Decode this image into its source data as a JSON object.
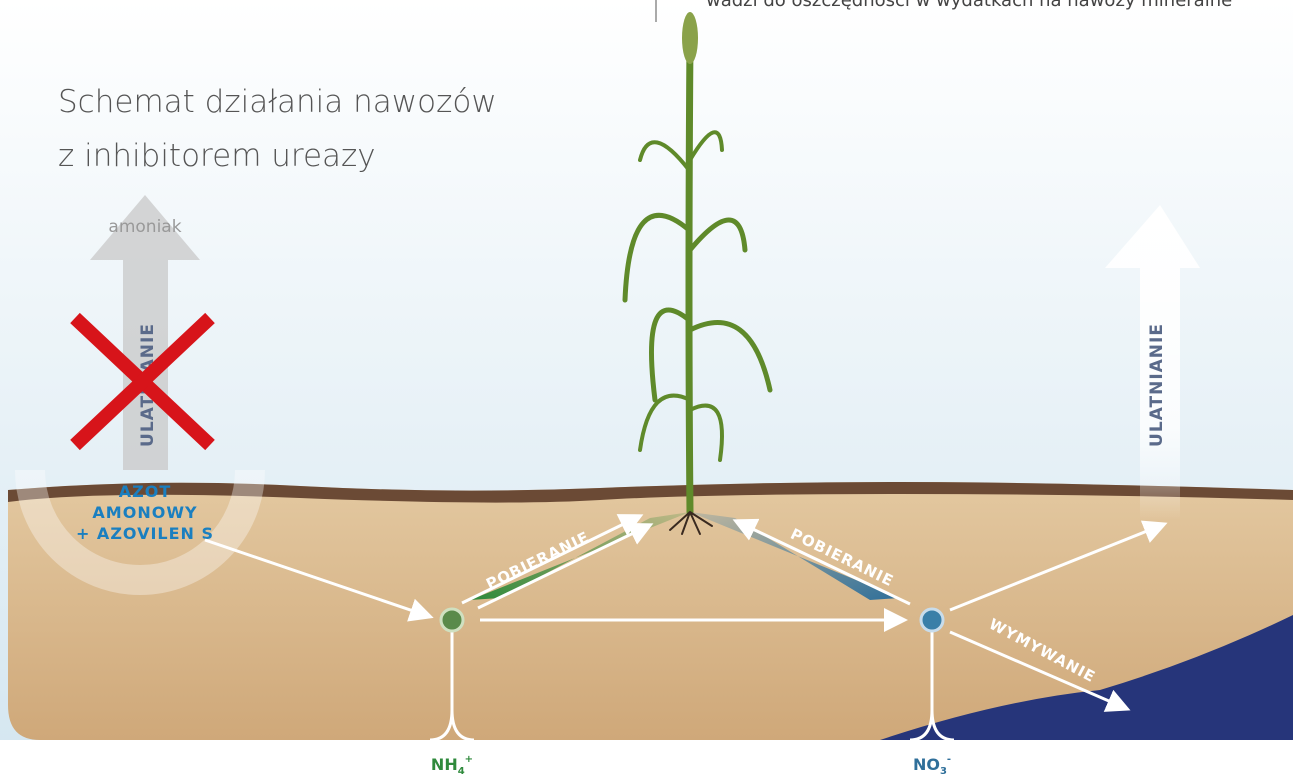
{
  "top_note": "wadzi do oszczędności w wydatkach na nawozy mineralne",
  "title": [
    "Schemat działania nawozów",
    "z inhibitorem ureazy"
  ],
  "left_gas": "amoniak",
  "left_arrow": "ULATNIANIE",
  "source": [
    "AZOT",
    "AMONOWY",
    "+ AZOVILEN S"
  ],
  "uptake_left": "POBIERANIE",
  "uptake_right": "POBIERANIE",
  "right_arrow": "ULATNIANIE",
  "leaching": "WYMYWANIE",
  "ammonium": {
    "base": "NH",
    "sub": "4",
    "sup": "+"
  },
  "nitrate": {
    "base": "NO",
    "sub": "3",
    "sup": "-"
  }
}
